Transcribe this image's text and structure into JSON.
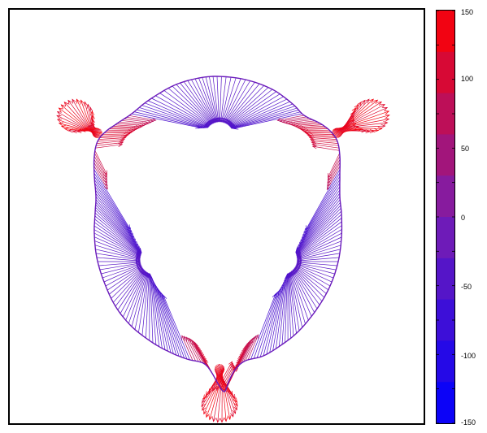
{
  "chart_data": {
    "type": "vector-field",
    "title": "",
    "xlabel": "",
    "ylabel": "",
    "grid": false,
    "colorbar": {
      "min": -150,
      "max": 150,
      "levels": 10,
      "ticks": [
        150,
        100,
        50,
        0,
        -50,
        -100,
        -150
      ],
      "tick_labels": [
        "150",
        "100",
        "50",
        "0",
        "-50",
        "-100",
        "-150"
      ],
      "color_low": "#0000ff",
      "color_mid": "#7a1eb0",
      "color_high": "#ff0000"
    },
    "field": {
      "description_symmetry": "three-fold",
      "boundary_shape": "rounded-triangular-droplet",
      "lobes": 3,
      "arrow_direction": "inward-normal"
    }
  },
  "colors": {
    "background": "#ffffff",
    "frame": "#000000"
  }
}
